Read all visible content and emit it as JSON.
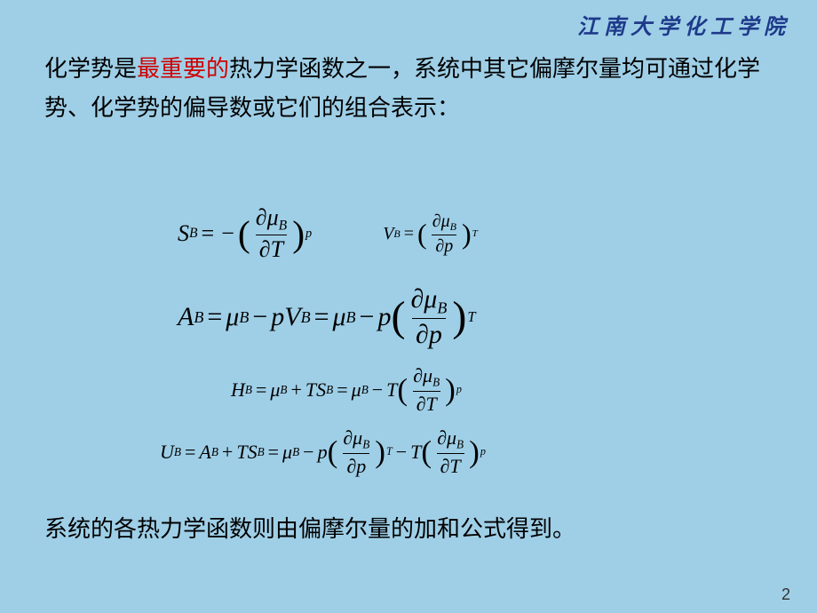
{
  "header": "江南大学化工学院",
  "intro_before_hl": "化学势是",
  "intro_hl": "最重要的",
  "intro_after_hl": "热力学函数之一，系统中其它偏摩尔量均可通过化学势、化学势的偏导数或它们的组合表示：",
  "footer": "系统的各热力学函数则由偏摩尔量的加和公式得到。",
  "page_num": "2",
  "sym": {
    "S": "S",
    "V": "V",
    "A": "A",
    "H": "H",
    "U": "U",
    "mu": "μ",
    "p": "p",
    "T": "T",
    "B": "B",
    "partial": "∂",
    "eq": "=",
    "minus": "−",
    "plus": "+",
    "lp": "(",
    "rp": ")"
  },
  "style": {
    "bg": "#9fcfe7",
    "text_color": "#000000",
    "highlight_color": "#d00000",
    "header_color": "#1e3a8a",
    "body_fontsize": 26,
    "header_fontsize": 24,
    "math_fontsize": 26,
    "math_small_fontsize": 20,
    "pagenum_fontsize": 18
  }
}
